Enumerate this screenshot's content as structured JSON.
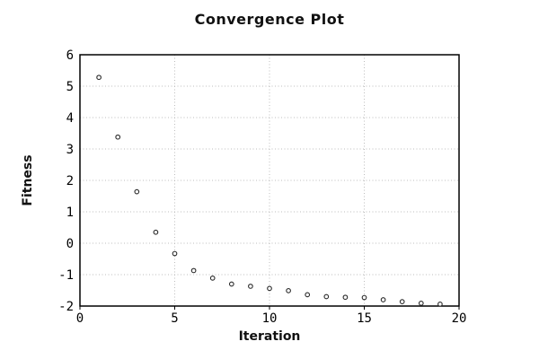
{
  "chart_data": {
    "type": "scatter",
    "title": "Convergence Plot",
    "xlabel": "Iteration",
    "ylabel": "Fitness",
    "x": [
      1,
      2,
      3,
      4,
      5,
      6,
      7,
      8,
      9,
      10,
      11,
      12,
      13,
      14,
      15,
      16,
      17,
      18,
      19
    ],
    "y": [
      5.28,
      3.38,
      1.64,
      0.35,
      -0.33,
      -0.87,
      -1.11,
      -1.3,
      -1.37,
      -1.44,
      -1.51,
      -1.64,
      -1.7,
      -1.72,
      -1.73,
      -1.8,
      -1.86,
      -1.91,
      -1.94
    ],
    "xlim": [
      0,
      20
    ],
    "ylim": [
      -2,
      6
    ],
    "xticks": [
      0,
      5,
      10,
      15,
      20
    ],
    "yticks": [
      -2,
      -1,
      0,
      1,
      2,
      3,
      4,
      5,
      6
    ],
    "grid": true,
    "legend": "none",
    "marker": "open-circle",
    "marker_color": "#2a2a2a",
    "marker_fill": "#ffffff",
    "grid_color": "#bdbdbd",
    "border_color": "#000000",
    "text_color": "#000000"
  }
}
